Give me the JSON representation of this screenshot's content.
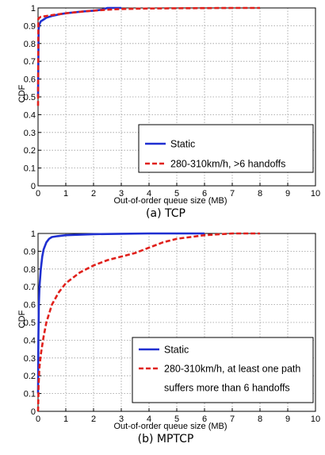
{
  "chart_data": [
    {
      "type": "line",
      "caption": "(a) TCP",
      "xlabel": "Out-of-order queue size (MB)",
      "ylabel": "CDF",
      "xlim": [
        0,
        10
      ],
      "ylim": [
        0,
        1
      ],
      "xticks": [
        "0",
        "1",
        "2",
        "3",
        "4",
        "5",
        "6",
        "7",
        "8",
        "9",
        "10"
      ],
      "yticks": [
        "0",
        "0.1",
        "0.2",
        "0.3",
        "0.4",
        "0.5",
        "0.6",
        "0.7",
        "0.8",
        "0.9",
        "1"
      ],
      "grid": true,
      "legend_position": "bottom-right",
      "series": [
        {
          "name": "Static",
          "color": "#1f2fd1",
          "style": "solid",
          "x": [
            0,
            0.02,
            0.05,
            0.1,
            0.2,
            0.3,
            0.5,
            0.8,
            1.0,
            1.3,
            1.6,
            2.0,
            2.3,
            2.5,
            3.0
          ],
          "y": [
            0.5,
            0.88,
            0.91,
            0.925,
            0.935,
            0.945,
            0.955,
            0.965,
            0.97,
            0.975,
            0.98,
            0.985,
            0.99,
            1.0,
            1.0
          ]
        },
        {
          "name": "280-310km/h,  >6 handoffs",
          "color": "#e0201b",
          "style": "dashed",
          "x": [
            0,
            0.01,
            0.05,
            0.1,
            0.3,
            0.5,
            1.0,
            1.5,
            2.0,
            2.5,
            3.0,
            4.0,
            5.0,
            6.0,
            7.0,
            8.0
          ],
          "y": [
            0.45,
            0.94,
            0.945,
            0.95,
            0.955,
            0.96,
            0.97,
            0.978,
            0.985,
            0.99,
            0.994,
            0.997,
            0.998,
            0.999,
            1.0,
            1.0
          ]
        }
      ]
    },
    {
      "type": "line",
      "caption": "(b) MPTCP",
      "xlabel": "Out-of-order queue size (MB)",
      "ylabel": "CDF",
      "xlim": [
        0,
        10
      ],
      "ylim": [
        0,
        1
      ],
      "xticks": [
        "0",
        "1",
        "2",
        "3",
        "4",
        "5",
        "6",
        "7",
        "8",
        "9",
        "10"
      ],
      "yticks": [
        "0",
        "0.1",
        "0.2",
        "0.3",
        "0.4",
        "0.5",
        "0.6",
        "0.7",
        "0.8",
        "0.9",
        "1"
      ],
      "grid": true,
      "legend_position": "bottom-right",
      "series": [
        {
          "name": "Static",
          "color": "#1f2fd1",
          "style": "solid",
          "x": [
            0,
            0.01,
            0.03,
            0.05,
            0.1,
            0.15,
            0.2,
            0.3,
            0.4,
            0.5,
            0.7,
            1.0,
            1.5,
            2.0,
            3.0,
            4.0,
            5.0,
            6.0
          ],
          "y": [
            0.1,
            0.4,
            0.6,
            0.7,
            0.8,
            0.87,
            0.91,
            0.95,
            0.97,
            0.98,
            0.985,
            0.99,
            0.993,
            0.996,
            0.998,
            1.0,
            1.0,
            1.0
          ]
        },
        {
          "name": "280-310km/h, at least one path suffers  more  than 6 handoffs",
          "legend_lines": [
            "280-310km/h, at least one path",
            "suffers  more  than 6 handoffs"
          ],
          "color": "#e0201b",
          "style": "dashed",
          "x": [
            0,
            0.02,
            0.05,
            0.1,
            0.2,
            0.3,
            0.5,
            0.75,
            1.0,
            1.5,
            2.0,
            2.5,
            3.0,
            3.5,
            4.0,
            4.5,
            5.0,
            5.5,
            6.0,
            7.0,
            8.0
          ],
          "y": [
            0,
            0.15,
            0.25,
            0.32,
            0.42,
            0.5,
            0.6,
            0.67,
            0.72,
            0.78,
            0.82,
            0.85,
            0.87,
            0.89,
            0.92,
            0.95,
            0.97,
            0.98,
            0.99,
            1.0,
            1.0
          ]
        }
      ]
    }
  ]
}
